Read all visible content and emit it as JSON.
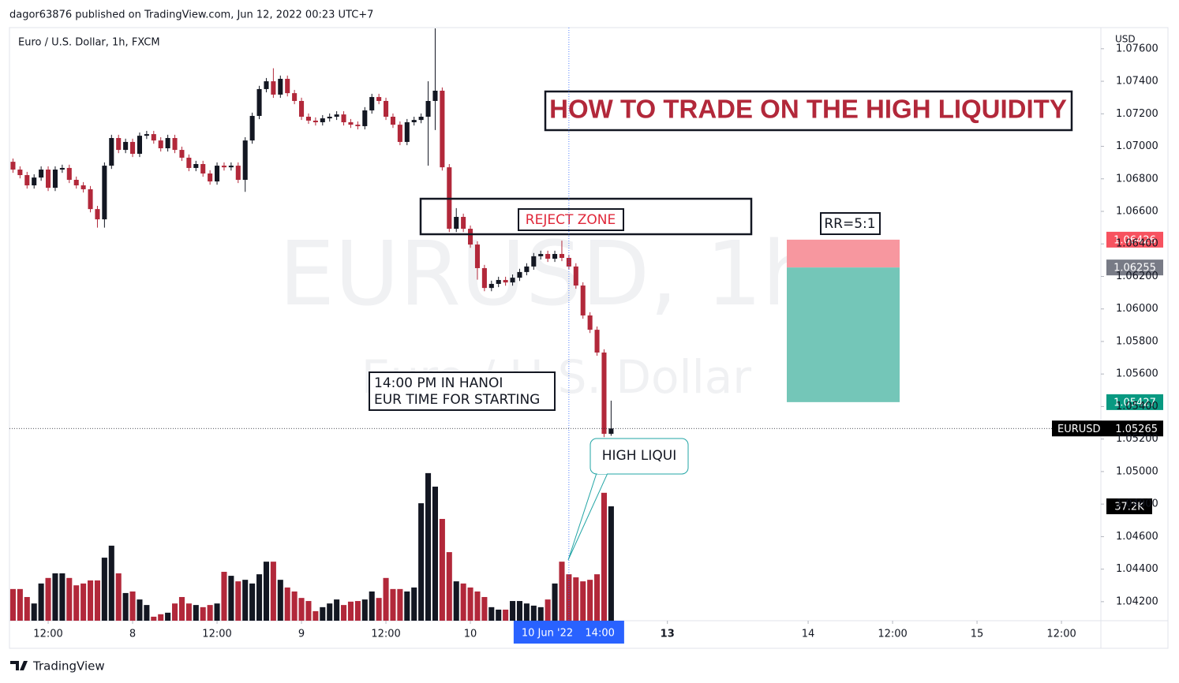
{
  "header": {
    "publisher": "dagor63876 published on TradingView.com, Jun 12, 2022 00:23 UTC+7",
    "symbol_title": "Euro / U.S. Dollar, 1h, FXCM",
    "currency": "USD"
  },
  "chart_data": {
    "type": "candlestick",
    "title": "HOW TO TRADE ON THE HIGH LIQUIDITY",
    "watermark": "EURUSD, 1h",
    "watermark_subtitle": "Euro / U.S. Dollar",
    "symbol": "EURUSD",
    "colors": {
      "up": "#131722",
      "down": "#b2283a"
    },
    "open": [
      1.06905,
      1.06857,
      1.06823,
      1.0676,
      1.06808,
      1.06857,
      1.06745,
      1.06857,
      1.06867,
      1.06794,
      1.0676,
      1.06736,
      1.06614,
      1.06551,
      1.06881,
      1.07051,
      1.06978,
      1.07027,
      1.06954,
      1.07065,
      1.07075,
      1.07036,
      1.06988,
      1.07051,
      1.06978,
      1.0693,
      1.06867,
      1.06891,
      1.06833,
      1.06784,
      1.06881,
      1.06871,
      1.06881,
      1.06794,
      1.07036,
      1.07187,
      1.07352,
      1.074,
      1.07318,
      1.07415,
      1.07327,
      1.07279,
      1.07182,
      1.07158,
      1.07148,
      1.07172,
      1.07182,
      1.07196,
      1.07148,
      1.07133,
      1.07124,
      1.07221,
      1.07303,
      1.07279,
      1.07182,
      1.07133,
      1.07027,
      1.07148,
      1.07162,
      1.07182,
      1.07279,
      1.07342,
      1.06871,
      1.06493,
      1.06566,
      1.06493,
      1.06396,
      1.06251,
      1.06129,
      1.06154,
      1.06178,
      1.06163,
      1.06192,
      1.06227,
      1.06261,
      1.06324,
      1.06338,
      1.06309,
      1.06338,
      1.06314,
      1.06261,
      1.06144,
      1.0596,
      1.05872,
      1.05732,
      1.05232
    ],
    "high": [
      1.06925,
      1.06877,
      1.06843,
      1.06828,
      1.06877,
      1.06877,
      1.06877,
      1.06887,
      1.06887,
      1.06814,
      1.0678,
      1.06756,
      1.06634,
      1.06901,
      1.07071,
      1.07071,
      1.07047,
      1.07047,
      1.07085,
      1.07095,
      1.07095,
      1.07056,
      1.07071,
      1.07071,
      1.06998,
      1.0695,
      1.06911,
      1.06911,
      1.06853,
      1.06901,
      1.06901,
      1.06901,
      1.06901,
      1.07056,
      1.07207,
      1.07372,
      1.0742,
      1.0748,
      1.07435,
      1.07435,
      1.07347,
      1.07299,
      1.07202,
      1.07178,
      1.07192,
      1.07202,
      1.07216,
      1.07216,
      1.07168,
      1.07153,
      1.07241,
      1.07323,
      1.07323,
      1.07299,
      1.07202,
      1.07153,
      1.07168,
      1.07182,
      1.07202,
      1.074,
      1.07725,
      1.07362,
      1.06891,
      1.0662,
      1.06586,
      1.06513,
      1.06416,
      1.06271,
      1.06174,
      1.06198,
      1.06198,
      1.06212,
      1.06247,
      1.06281,
      1.06344,
      1.06358,
      1.06358,
      1.06358,
      1.0642,
      1.06334,
      1.06281,
      1.06164,
      1.0598,
      1.05892,
      1.05752,
      1.05436
    ],
    "low": [
      1.06837,
      1.06803,
      1.0674,
      1.0674,
      1.06788,
      1.06725,
      1.06725,
      1.06837,
      1.06774,
      1.0674,
      1.06716,
      1.06594,
      1.065,
      1.065,
      1.06861,
      1.06958,
      1.06958,
      1.06934,
      1.06934,
      1.07045,
      1.07016,
      1.06968,
      1.06968,
      1.06958,
      1.0691,
      1.06847,
      1.06847,
      1.06813,
      1.06764,
      1.06764,
      1.06851,
      1.06851,
      1.06774,
      1.0672,
      1.07016,
      1.07167,
      1.07332,
      1.07298,
      1.07298,
      1.07307,
      1.07259,
      1.07162,
      1.07138,
      1.07128,
      1.07128,
      1.07152,
      1.07162,
      1.07128,
      1.07113,
      1.07104,
      1.07104,
      1.07201,
      1.07259,
      1.07162,
      1.07113,
      1.07007,
      1.07007,
      1.07128,
      1.07142,
      1.06881,
      1.071,
      1.06851,
      1.06473,
      1.06473,
      1.06473,
      1.06376,
      1.0618,
      1.06109,
      1.06109,
      1.06134,
      1.06143,
      1.06143,
      1.06172,
      1.06207,
      1.06241,
      1.06304,
      1.06289,
      1.06289,
      1.06294,
      1.06241,
      1.06124,
      1.0594,
      1.05852,
      1.05712,
      1.05212,
      1.0522
    ],
    "close": [
      1.06857,
      1.06823,
      1.0676,
      1.06808,
      1.06857,
      1.06745,
      1.06857,
      1.06867,
      1.06794,
      1.0676,
      1.06736,
      1.06614,
      1.06551,
      1.06881,
      1.07051,
      1.06978,
      1.07027,
      1.06954,
      1.07065,
      1.07075,
      1.07036,
      1.06988,
      1.07051,
      1.06978,
      1.0693,
      1.06867,
      1.06891,
      1.06833,
      1.06784,
      1.06881,
      1.06871,
      1.06881,
      1.06794,
      1.07036,
      1.07187,
      1.07352,
      1.074,
      1.07318,
      1.07415,
      1.07327,
      1.07279,
      1.07182,
      1.07158,
      1.07148,
      1.07172,
      1.07182,
      1.07196,
      1.07148,
      1.07133,
      1.07124,
      1.07221,
      1.07303,
      1.07279,
      1.07182,
      1.07133,
      1.07027,
      1.07148,
      1.07162,
      1.07182,
      1.07279,
      1.07342,
      1.06871,
      1.06493,
      1.06566,
      1.06493,
      1.06396,
      1.06251,
      1.06129,
      1.06154,
      1.06178,
      1.06163,
      1.06192,
      1.06227,
      1.06261,
      1.06324,
      1.06338,
      1.06309,
      1.06338,
      1.06314,
      1.06261,
      1.06144,
      1.0596,
      1.05872,
      1.05732,
      1.05232,
      1.05265
    ],
    "volume": {
      "values": [
        10300,
        10300,
        7700,
        5600,
        12100,
        13900,
        15400,
        15400,
        13900,
        11500,
        12100,
        13100,
        13100,
        20500,
        24400,
        15400,
        9000,
        9500,
        6900,
        5100,
        1300,
        2100,
        2600,
        5600,
        7700,
        5600,
        5100,
        4400,
        5100,
        5600,
        15900,
        14600,
        12800,
        13300,
        12100,
        15100,
        19200,
        19200,
        13300,
        10800,
        9500,
        7400,
        6400,
        3100,
        4400,
        5600,
        6900,
        5100,
        6200,
        6400,
        6900,
        9500,
        7400,
        13900,
        10300,
        10300,
        9500,
        10800,
        38200,
        48000,
        43600,
        33100,
        22300,
        12800,
        12100,
        10800,
        9500,
        7700,
        4400,
        3600,
        3600,
        6400,
        6400,
        5600,
        4900,
        4400,
        6900,
        12100,
        19200,
        15100,
        14100,
        12800,
        13300,
        15100,
        41600,
        37200
      ],
      "last_value_label": "37.2K"
    },
    "volume_ylim": [
      0,
      192900
    ],
    "xlim": [
      -0.5,
      154.6
    ],
    "xticks": [
      {
        "value": 5,
        "label": "12:00"
      },
      {
        "value": 17,
        "label": "8"
      },
      {
        "value": 29,
        "label": "12:00"
      },
      {
        "value": 41,
        "label": "9"
      },
      {
        "value": 53,
        "label": "12:00"
      },
      {
        "value": 65,
        "label": "10"
      },
      {
        "value": 93,
        "label": "13"
      },
      {
        "value": 113,
        "label": "14"
      },
      {
        "value": 125,
        "label": "12:00"
      },
      {
        "value": 137,
        "label": "15"
      },
      {
        "value": 149,
        "label": "12:00"
      }
    ],
    "ylim": [
      1.04083,
      1.0773
    ],
    "yticks": [
      {
        "value": 1.042,
        "label": "1.04200"
      },
      {
        "value": 1.044,
        "label": "1.04400"
      },
      {
        "value": 1.046,
        "label": "1.04600"
      },
      {
        "value": 1.048,
        "label": "1.04800"
      },
      {
        "value": 1.05,
        "label": "1.05000"
      },
      {
        "value": 1.052,
        "label": "1.05200"
      },
      {
        "value": 1.054,
        "label": "1.05400"
      },
      {
        "value": 1.056,
        "label": "1.05600"
      },
      {
        "value": 1.058,
        "label": "1.05800"
      },
      {
        "value": 1.06,
        "label": "1.06000"
      },
      {
        "value": 1.062,
        "label": "1.06200"
      },
      {
        "value": 1.064,
        "label": "1.06400"
      },
      {
        "value": 1.066,
        "label": "1.06600"
      },
      {
        "value": 1.068,
        "label": "1.06800"
      },
      {
        "value": 1.07,
        "label": "1.07000"
      },
      {
        "value": 1.072,
        "label": "1.07200"
      },
      {
        "value": 1.074,
        "label": "1.07400"
      },
      {
        "value": 1.076,
        "label": "1.07600"
      }
    ],
    "grid": false,
    "crosshair": {
      "x": 79,
      "date_label": "10 Jun '22",
      "time_label": "14:00"
    },
    "position": {
      "stop": 1.06426,
      "entry": 1.06255,
      "target": 1.05427,
      "label": "RR=5:1"
    },
    "annotations": {
      "reject_zone": "REJECT ZONE",
      "note_line1": "14:00 PM IN HANOI",
      "note_line2": "EUR TIME FOR STARTING",
      "callout": "HIGH LIQUI"
    }
  },
  "footer": {
    "brand": "TradingView"
  }
}
